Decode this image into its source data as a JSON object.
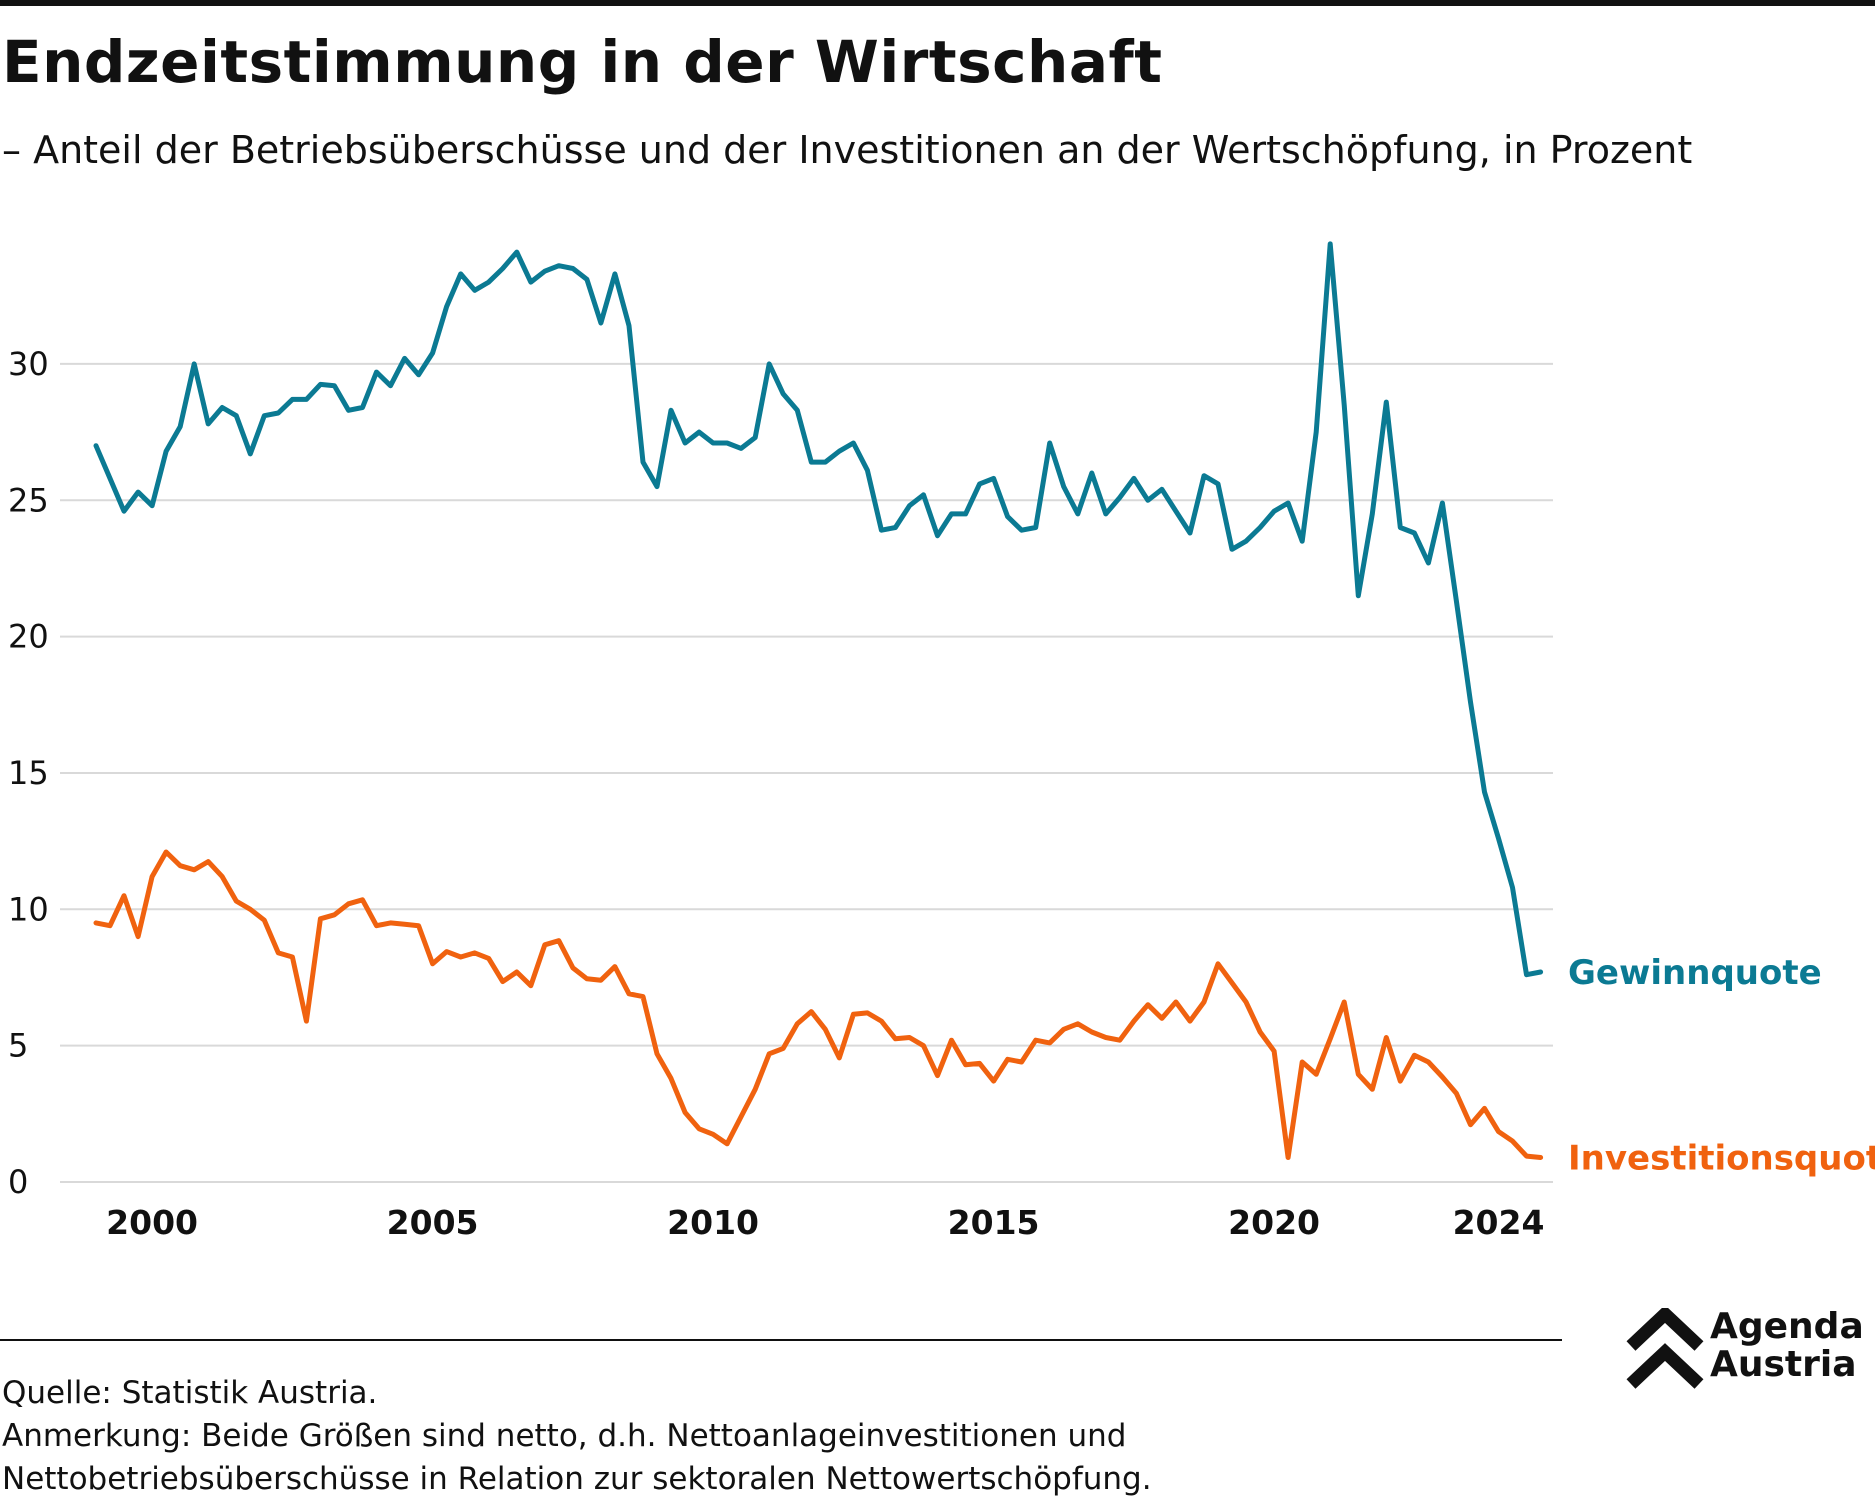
{
  "title": "Endzeitstimmung in der Wirtschaft",
  "subtitle": "– Anteil der Betriebsüberschüsse und der Investitionen an der Wertschöpfung, in Prozent",
  "footer": {
    "source": "Quelle: Statistik Austria.",
    "note_line1": "Anmerkung: Beide Größen sind netto, d.h. Nettoanlageinvestitionen und",
    "note_line2": "Nettobetriebsüberschüsse in Relation zur sektoralen Nettowertschöpfung."
  },
  "logo": {
    "line1": "Agenda",
    "line2": "Austria"
  },
  "chart_data": {
    "type": "line",
    "title": "Endzeitstimmung in der Wirtschaft",
    "xlabel": "",
    "ylabel": "",
    "x_start": 1999.0,
    "x_step": 0.25,
    "xlim": [
      1999,
      2024.75
    ],
    "ylim": [
      0,
      35
    ],
    "yticks": [
      0,
      5,
      10,
      15,
      20,
      25,
      30
    ],
    "ytick_labels": [
      "0",
      "5",
      "10",
      "15",
      "20",
      "25",
      "30"
    ],
    "xticks": [
      2000,
      2005,
      2010,
      2015,
      2020,
      2024
    ],
    "xtick_labels": [
      "2000",
      "2005",
      "2010",
      "2015",
      "2020",
      "2024"
    ],
    "grid": true,
    "legend": "direct labels at line ends (right)",
    "series": [
      {
        "name": "Gewinnquote",
        "color": "#0b7a93",
        "values": [
          27.0,
          25.8,
          24.6,
          25.3,
          24.8,
          26.8,
          27.7,
          30.0,
          27.8,
          28.4,
          28.1,
          26.7,
          28.1,
          28.2,
          28.7,
          28.7,
          29.25,
          29.2,
          28.3,
          28.4,
          29.7,
          29.2,
          30.2,
          29.6,
          30.4,
          32.1,
          33.3,
          32.7,
          33.0,
          33.5,
          34.1,
          33.0,
          33.4,
          33.6,
          33.5,
          33.1,
          31.5,
          33.3,
          31.4,
          26.4,
          25.5,
          28.3,
          27.1,
          27.5,
          27.1,
          27.1,
          26.9,
          27.3,
          30.0,
          28.9,
          28.3,
          26.4,
          26.4,
          26.8,
          27.1,
          26.1,
          23.9,
          24.0,
          24.8,
          25.2,
          23.7,
          24.5,
          24.5,
          25.6,
          25.8,
          24.4,
          23.9,
          24.0,
          27.1,
          25.5,
          24.5,
          26.0,
          24.5,
          25.1,
          25.8,
          25.0,
          25.4,
          24.6,
          23.8,
          25.9,
          25.6,
          23.2,
          23.5,
          24.0,
          24.6,
          24.9,
          23.5,
          27.5,
          34.4,
          28.5,
          21.5,
          24.5,
          28.6,
          24.0,
          23.8,
          22.7,
          24.9,
          21.3,
          17.6,
          14.3,
          12.6,
          10.8,
          7.6,
          7.7
        ]
      },
      {
        "name": "Investitionsquote",
        "color": "#f0620f",
        "values": [
          9.5,
          9.4,
          10.5,
          9.0,
          11.2,
          12.1,
          11.6,
          11.45,
          11.75,
          11.2,
          10.3,
          10.0,
          9.6,
          8.4,
          8.25,
          5.9,
          9.65,
          9.8,
          10.2,
          10.35,
          9.4,
          9.5,
          9.45,
          9.4,
          8.0,
          8.45,
          8.25,
          8.4,
          8.2,
          7.35,
          7.7,
          7.2,
          8.7,
          8.85,
          7.85,
          7.45,
          7.4,
          7.9,
          6.9,
          6.8,
          4.7,
          3.8,
          2.55,
          1.95,
          1.75,
          1.4,
          2.4,
          3.4,
          4.7,
          4.9,
          5.8,
          6.25,
          5.6,
          4.55,
          6.15,
          6.2,
          5.9,
          5.25,
          5.3,
          5.0,
          3.9,
          5.2,
          4.3,
          4.35,
          3.7,
          4.5,
          4.4,
          5.2,
          5.1,
          5.6,
          5.8,
          5.5,
          5.3,
          5.2,
          5.9,
          6.5,
          6.0,
          6.6,
          5.9,
          6.6,
          8.0,
          7.3,
          6.6,
          5.5,
          4.8,
          0.9,
          4.4,
          3.95,
          5.25,
          6.6,
          3.95,
          3.4,
          5.3,
          3.7,
          4.65,
          4.4,
          3.85,
          3.25,
          2.1,
          2.7,
          1.85,
          1.5,
          0.95,
          0.9
        ]
      }
    ]
  }
}
